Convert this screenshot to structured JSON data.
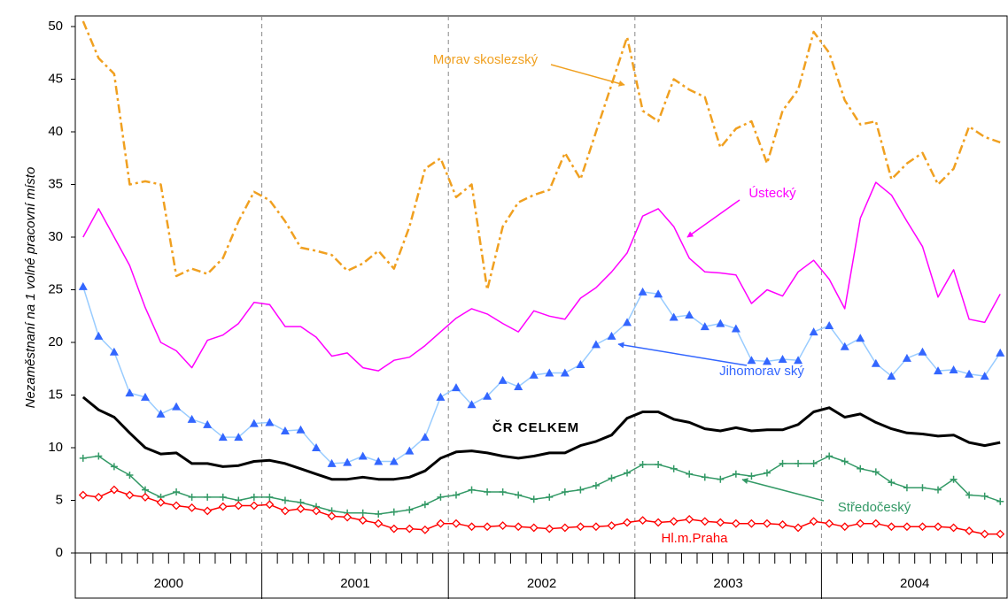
{
  "chart_data": {
    "type": "line",
    "y_label": "Nezaměstnaní na 1 volné pracovní místo",
    "years": [
      2000,
      2001,
      2002,
      2003,
      2004
    ],
    "ylim": [
      0,
      50
    ],
    "yticks": [
      0,
      5,
      10,
      15,
      20,
      25,
      30,
      35,
      40,
      45,
      50
    ],
    "series": [
      {
        "name": "Morav skoslezský",
        "color": "#f0a020",
        "dash": "dashdot",
        "width": 2.5,
        "values": [
          50.5,
          47,
          45.5,
          35,
          35.3,
          35,
          26.3,
          27,
          26.5,
          28,
          31.5,
          34.3,
          33.5,
          31.5,
          29,
          28.7,
          28.3,
          26.8,
          27.5,
          28.7,
          27,
          31,
          36.5,
          37.5,
          33.8,
          35,
          25,
          31,
          33.3,
          34,
          34.5,
          38,
          35.5,
          40,
          44.5,
          49,
          42,
          41,
          45,
          44,
          43.3,
          38.5,
          40.3,
          41,
          37,
          42,
          44,
          49.5,
          47.5,
          43,
          40.7,
          41,
          35.5,
          37,
          38,
          35,
          36.5,
          40.5,
          39.5,
          39
        ]
      },
      {
        "name": "Ústecký",
        "color": "#ff00ff",
        "width": 1.5,
        "values": [
          30,
          32.7,
          30,
          27.3,
          23.3,
          20,
          19.2,
          17.6,
          20.2,
          20.7,
          21.8,
          23.8,
          23.6,
          21.5,
          21.5,
          20.5,
          18.7,
          19,
          17.6,
          17.3,
          18.3,
          18.6,
          19.7,
          21,
          22.3,
          23.2,
          22.7,
          21.8,
          21,
          23,
          22.5,
          22.2,
          24.2,
          25.2,
          26.7,
          28.5,
          32,
          32.7,
          31,
          28,
          26.7,
          26.6,
          26.4,
          23.7,
          25,
          24.4,
          26.7,
          27.8,
          26,
          23.2,
          31.8,
          35.2,
          34,
          31.5,
          29.1,
          24.3,
          26.9,
          22.2,
          21.9,
          24.6
        ]
      },
      {
        "name": "Jihomorav ský",
        "color": "#99ccff",
        "marker": "triangle",
        "marker_color": "#3366ff",
        "width": 1.5,
        "values": [
          25.3,
          20.6,
          19.1,
          15.2,
          14.8,
          13.2,
          13.9,
          12.7,
          12.2,
          11,
          11,
          12.3,
          12.4,
          11.6,
          11.7,
          10,
          8.5,
          8.6,
          9.2,
          8.7,
          8.7,
          9.7,
          11,
          14.8,
          15.7,
          14.1,
          14.9,
          16.4,
          15.8,
          16.9,
          17.1,
          17.1,
          17.9,
          19.8,
          20.6,
          21.9,
          24.8,
          24.6,
          22.4,
          22.6,
          21.5,
          21.8,
          21.3,
          18.3,
          18.2,
          18.4,
          18.3,
          21,
          21.6,
          19.6,
          20.4,
          18,
          16.8,
          18.5,
          19.1,
          17.3,
          17.4,
          17,
          16.8,
          19
        ]
      },
      {
        "name": "ČR CELKEM",
        "color": "#000000",
        "width": 3,
        "bold": true,
        "values": [
          14.8,
          13.6,
          12.9,
          11.4,
          10,
          9.4,
          9.5,
          8.5,
          8.5,
          8.2,
          8.3,
          8.7,
          8.8,
          8.5,
          8,
          7.5,
          7,
          7,
          7.2,
          7,
          7,
          7.2,
          7.8,
          9,
          9.6,
          9.7,
          9.5,
          9.2,
          9,
          9.2,
          9.5,
          9.5,
          10.2,
          10.6,
          11.2,
          12.8,
          13.4,
          13.4,
          12.7,
          12.4,
          11.8,
          11.6,
          11.9,
          11.6,
          11.7,
          11.7,
          12.2,
          13.4,
          13.8,
          12.9,
          13.2,
          12.4,
          11.8,
          11.4,
          11.3,
          11.1,
          11.2,
          10.5,
          10.2,
          10.5
        ]
      },
      {
        "name": "Středočeský",
        "color": "#339966",
        "marker": "plus",
        "marker_color": "#339966",
        "width": 1.5,
        "values": [
          9,
          9.2,
          8.2,
          7.4,
          6,
          5.3,
          5.8,
          5.3,
          5.3,
          5.3,
          5,
          5.3,
          5.3,
          5,
          4.8,
          4.4,
          4,
          3.8,
          3.8,
          3.7,
          3.9,
          4.1,
          4.6,
          5.3,
          5.5,
          6,
          5.8,
          5.8,
          5.5,
          5.1,
          5.3,
          5.8,
          6,
          6.4,
          7.1,
          7.6,
          8.4,
          8.4,
          8,
          7.5,
          7.2,
          7,
          7.5,
          7.3,
          7.6,
          8.5,
          8.5,
          8.5,
          9.2,
          8.7,
          8,
          7.7,
          6.7,
          6.2,
          6.2,
          6,
          7,
          5.5,
          5.4,
          4.9
        ]
      },
      {
        "name": "Hl.m.Praha",
        "color": "#ff0000",
        "marker": "diamond",
        "marker_color": "#ff0000",
        "width": 1.5,
        "values": [
          5.5,
          5.3,
          6,
          5.5,
          5.3,
          4.8,
          4.5,
          4.3,
          4,
          4.4,
          4.5,
          4.5,
          4.6,
          4,
          4.2,
          4,
          3.5,
          3.4,
          3.1,
          2.8,
          2.3,
          2.3,
          2.2,
          2.8,
          2.8,
          2.5,
          2.5,
          2.6,
          2.5,
          2.4,
          2.3,
          2.4,
          2.5,
          2.5,
          2.6,
          2.9,
          3.1,
          2.9,
          3,
          3.2,
          3,
          2.9,
          2.8,
          2.8,
          2.8,
          2.7,
          2.4,
          3,
          2.8,
          2.5,
          2.8,
          2.8,
          2.5,
          2.5,
          2.5,
          2.5,
          2.4,
          2.1,
          1.8,
          1.8
        ]
      }
    ]
  }
}
